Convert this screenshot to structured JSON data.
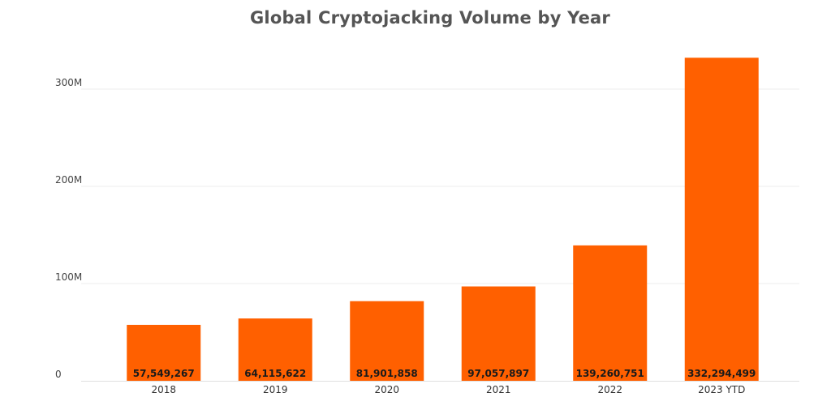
{
  "chart_data": {
    "type": "bar",
    "title": "Global Cryptojacking Volume by Year",
    "xlabel": "",
    "ylabel": "",
    "categories": [
      "2018",
      "2019",
      "2020",
      "2021",
      "2022",
      "2023 YTD"
    ],
    "values": [
      57549267,
      64115622,
      81901858,
      97057897,
      139260751,
      332294499
    ],
    "data_labels": [
      "57,549,267",
      "64,115,622",
      "81,901,858",
      "97,057,897",
      "139,260,751",
      "332,294,499"
    ],
    "y_ticks": [
      0,
      100000000,
      200000000,
      300000000
    ],
    "y_tick_labels": [
      "0",
      "100M",
      "200M",
      "300M"
    ],
    "ylim": [
      0,
      360000000
    ],
    "grid": true,
    "legend": "none",
    "bar_color": "#ff6000"
  }
}
